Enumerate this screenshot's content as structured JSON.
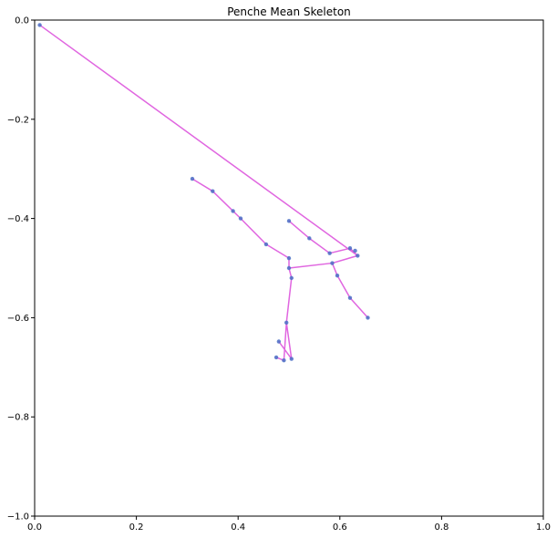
{
  "chart_data": {
    "type": "scatter",
    "title": "Penche Mean Skeleton",
    "xlabel": "",
    "ylabel": "",
    "xlim": [
      0,
      1
    ],
    "ylim": [
      -1,
      0
    ],
    "grid": false,
    "xticks": [
      0,
      0.2,
      0.4,
      0.6,
      0.8,
      1.0
    ],
    "xtick_labels": [
      "0.0",
      "0.2",
      "0.4",
      "0.6",
      "0.8",
      "1.0"
    ],
    "yticks": [
      0,
      -0.2,
      -0.4,
      -0.6,
      -0.8,
      -1.0
    ],
    "ytick_labels": [
      "0.0",
      "−0.2",
      "−0.4",
      "−0.6",
      "−0.8",
      "−1.0"
    ],
    "colors": {
      "line": "#e066e0",
      "marker": "#4a6fc4"
    },
    "points": [
      {
        "x": 0.01,
        "y": -0.01
      },
      {
        "x": 0.62,
        "y": -0.46
      },
      {
        "x": 0.63,
        "y": -0.465
      },
      {
        "x": 0.635,
        "y": -0.475
      },
      {
        "x": 0.31,
        "y": -0.32
      },
      {
        "x": 0.35,
        "y": -0.345
      },
      {
        "x": 0.39,
        "y": -0.385
      },
      {
        "x": 0.405,
        "y": -0.4
      },
      {
        "x": 0.455,
        "y": -0.452
      },
      {
        "x": 0.5,
        "y": -0.48
      },
      {
        "x": 0.5,
        "y": -0.405
      },
      {
        "x": 0.54,
        "y": -0.44
      },
      {
        "x": 0.58,
        "y": -0.47
      },
      {
        "x": 0.585,
        "y": -0.49
      },
      {
        "x": 0.5,
        "y": -0.5
      },
      {
        "x": 0.505,
        "y": -0.52
      },
      {
        "x": 0.595,
        "y": -0.515
      },
      {
        "x": 0.62,
        "y": -0.56
      },
      {
        "x": 0.655,
        "y": -0.6
      },
      {
        "x": 0.495,
        "y": -0.61
      },
      {
        "x": 0.48,
        "y": -0.648
      },
      {
        "x": 0.475,
        "y": -0.68
      },
      {
        "x": 0.49,
        "y": -0.686
      },
      {
        "x": 0.505,
        "y": -0.683
      }
    ],
    "segments": [
      [
        0,
        3
      ],
      [
        4,
        5
      ],
      [
        5,
        6
      ],
      [
        6,
        7
      ],
      [
        7,
        8
      ],
      [
        8,
        9
      ],
      [
        9,
        14
      ],
      [
        10,
        11
      ],
      [
        11,
        12
      ],
      [
        12,
        1
      ],
      [
        1,
        3
      ],
      [
        14,
        13
      ],
      [
        13,
        3
      ],
      [
        13,
        16
      ],
      [
        16,
        17
      ],
      [
        17,
        18
      ],
      [
        14,
        15
      ],
      [
        15,
        19
      ],
      [
        19,
        22
      ],
      [
        19,
        23
      ],
      [
        23,
        20
      ],
      [
        22,
        21
      ]
    ]
  }
}
